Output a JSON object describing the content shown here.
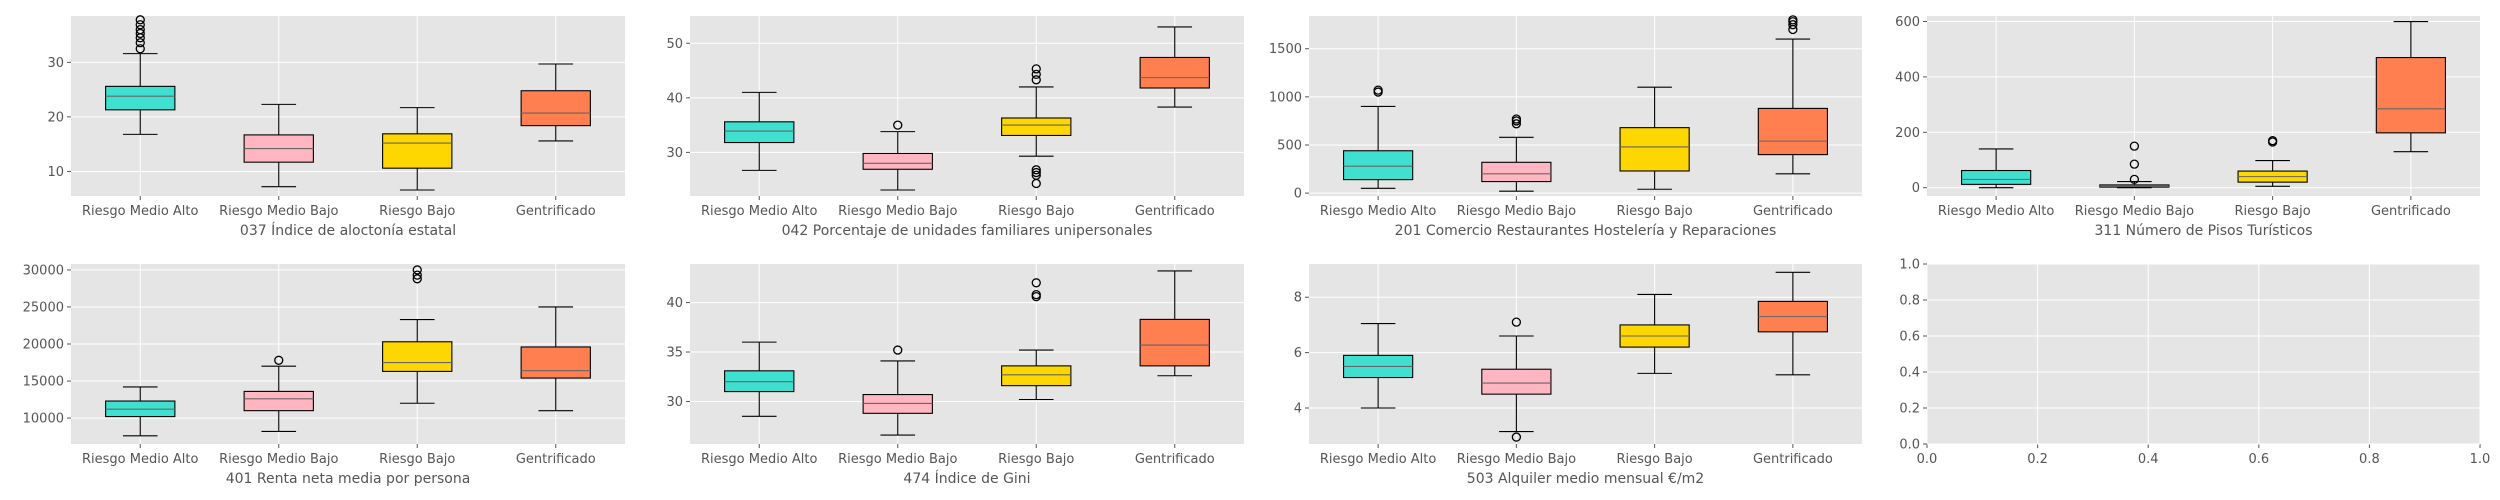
{
  "colors": {
    "background": "#e5e5e5",
    "grid": "#ffffff",
    "Riesgo Medio Alto": "#40e0d0",
    "Riesgo Medio Bajo": "#ffb6c1",
    "Riesgo Bajo": "#ffd700",
    "Gentrificado": "#ff7f50",
    "median": "#666666"
  },
  "chart_data": [
    {
      "type": "box",
      "xlabel": "037 Índice de aloctonía estatal",
      "categories": [
        "Riesgo Medio Alto",
        "Riesgo Medio Bajo",
        "Riesgo Bajo",
        "Gentrificado"
      ],
      "ylim": [
        5.5,
        38.5
      ],
      "yticks": [
        10,
        20,
        30
      ],
      "boxes": [
        {
          "whislo": 16.8,
          "q1": 21.3,
          "med": 23.8,
          "q3": 25.6,
          "whishi": 31.6,
          "fliers": [
            32.5,
            33.6,
            34.5,
            35.3,
            36.0,
            36.9,
            37.8
          ]
        },
        {
          "whislo": 7.2,
          "q1": 11.7,
          "med": 14.2,
          "q3": 16.7,
          "whishi": 22.3,
          "fliers": []
        },
        {
          "whislo": 6.6,
          "q1": 10.6,
          "med": 15.2,
          "q3": 16.9,
          "whishi": 21.7,
          "fliers": []
        },
        {
          "whislo": 15.6,
          "q1": 18.4,
          "med": 20.7,
          "q3": 24.8,
          "whishi": 29.7,
          "fliers": []
        }
      ]
    },
    {
      "type": "box",
      "xlabel": "042 Porcentaje de unidades familiares unipersonales",
      "categories": [
        "Riesgo Medio Alto",
        "Riesgo Medio Bajo",
        "Riesgo Bajo",
        "Gentrificado"
      ],
      "ylim": [
        22.0,
        55.0
      ],
      "yticks": [
        30,
        40,
        50
      ],
      "boxes": [
        {
          "whislo": 26.7,
          "q1": 31.8,
          "med": 33.9,
          "q3": 35.6,
          "whishi": 41.0,
          "fliers": []
        },
        {
          "whislo": 23.1,
          "q1": 26.9,
          "med": 28.0,
          "q3": 29.8,
          "whishi": 33.8,
          "fliers": [
            35.0
          ]
        },
        {
          "whislo": 29.3,
          "q1": 33.1,
          "med": 35.0,
          "q3": 36.3,
          "whishi": 42.0,
          "fliers": [
            43.3,
            44.3,
            45.3,
            24.3,
            25.8,
            26.3,
            26.8
          ]
        },
        {
          "whislo": 38.3,
          "q1": 41.8,
          "med": 43.7,
          "q3": 47.4,
          "whishi": 53.0,
          "fliers": []
        }
      ]
    },
    {
      "type": "box",
      "xlabel": "201 Comercio Restaurantes Hostelería y Reparaciones",
      "categories": [
        "Riesgo Medio Alto",
        "Riesgo Medio Bajo",
        "Riesgo Bajo",
        "Gentrificado"
      ],
      "ylim": [
        -30,
        1840
      ],
      "yticks": [
        0,
        500,
        1000,
        1500
      ],
      "boxes": [
        {
          "whislo": 50,
          "q1": 140,
          "med": 280,
          "q3": 440,
          "whishi": 900,
          "fliers": [
            1050,
            1070
          ]
        },
        {
          "whislo": 20,
          "q1": 120,
          "med": 200,
          "q3": 320,
          "whishi": 580,
          "fliers": [
            720,
            750,
            770
          ]
        },
        {
          "whislo": 40,
          "q1": 230,
          "med": 480,
          "q3": 680,
          "whishi": 1100,
          "fliers": []
        },
        {
          "whislo": 200,
          "q1": 400,
          "med": 540,
          "q3": 880,
          "whishi": 1600,
          "fliers": [
            1700,
            1750,
            1780,
            1800
          ]
        }
      ]
    },
    {
      "type": "box",
      "xlabel": "311 Número de Pisos Turísticos",
      "categories": [
        "Riesgo Medio Alto",
        "Riesgo Medio Bajo",
        "Riesgo Bajo",
        "Gentrificado"
      ],
      "ylim": [
        -30,
        620
      ],
      "yticks": [
        0,
        200,
        400,
        600
      ],
      "boxes": [
        {
          "whislo": 0,
          "q1": 12,
          "med": 30,
          "q3": 62,
          "whishi": 140,
          "fliers": []
        },
        {
          "whislo": 0,
          "q1": 2,
          "med": 5,
          "q3": 10,
          "whishi": 22,
          "fliers": [
            30,
            85,
            150
          ]
        },
        {
          "whislo": 5,
          "q1": 20,
          "med": 40,
          "q3": 60,
          "whishi": 98,
          "fliers": [
            165,
            170
          ]
        },
        {
          "whislo": 130,
          "q1": 198,
          "med": 285,
          "q3": 470,
          "whishi": 600,
          "fliers": []
        }
      ]
    },
    {
      "type": "box",
      "xlabel": "401 Renta neta media por persona",
      "categories": [
        "Riesgo Medio Alto",
        "Riesgo Medio Bajo",
        "Riesgo Bajo",
        "Gentrificado"
      ],
      "ylim": [
        6500,
        30800
      ],
      "yticks": [
        10000,
        15000,
        20000,
        25000,
        30000
      ],
      "boxes": [
        {
          "whislo": 7600,
          "q1": 10200,
          "med": 11200,
          "q3": 12300,
          "whishi": 14200,
          "fliers": []
        },
        {
          "whislo": 8200,
          "q1": 11000,
          "med": 12600,
          "q3": 13600,
          "whishi": 17000,
          "fliers": [
            17800
          ]
        },
        {
          "whislo": 12000,
          "q1": 16300,
          "med": 17500,
          "q3": 20300,
          "whishi": 23300,
          "fliers": [
            28800,
            29300,
            30000
          ]
        },
        {
          "whislo": 11000,
          "q1": 15400,
          "med": 16400,
          "q3": 19600,
          "whishi": 25000,
          "fliers": []
        }
      ]
    },
    {
      "type": "box",
      "xlabel": "474 Índice de Gini",
      "categories": [
        "Riesgo Medio Alto",
        "Riesgo Medio Bajo",
        "Riesgo Bajo",
        "Gentrificado"
      ],
      "ylim": [
        25.7,
        43.9
      ],
      "yticks": [
        30,
        35,
        40
      ],
      "boxes": [
        {
          "whislo": 28.5,
          "q1": 31.0,
          "med": 32.0,
          "q3": 33.1,
          "whishi": 36.0,
          "fliers": []
        },
        {
          "whislo": 26.6,
          "q1": 28.8,
          "med": 29.8,
          "q3": 30.7,
          "whishi": 34.1,
          "fliers": [
            35.2
          ]
        },
        {
          "whislo": 30.2,
          "q1": 31.6,
          "med": 32.7,
          "q3": 33.6,
          "whishi": 35.2,
          "fliers": [
            40.6,
            40.8,
            42.0
          ]
        },
        {
          "whislo": 32.6,
          "q1": 33.6,
          "med": 35.7,
          "q3": 38.3,
          "whishi": 43.2,
          "fliers": []
        }
      ]
    },
    {
      "type": "box",
      "xlabel": "503 Alquiler medio mensual €/m2",
      "categories": [
        "Riesgo Medio Alto",
        "Riesgo Medio Bajo",
        "Riesgo Bajo",
        "Gentrificado"
      ],
      "ylim": [
        2.7,
        9.2
      ],
      "yticks": [
        4,
        6,
        8
      ],
      "boxes": [
        {
          "whislo": 4.0,
          "q1": 5.1,
          "med": 5.5,
          "q3": 5.9,
          "whishi": 7.05,
          "fliers": []
        },
        {
          "whislo": 3.15,
          "q1": 4.5,
          "med": 4.9,
          "q3": 5.4,
          "whishi": 6.6,
          "fliers": [
            7.1,
            2.95
          ]
        },
        {
          "whislo": 5.25,
          "q1": 6.2,
          "med": 6.6,
          "q3": 7.0,
          "whishi": 8.1,
          "fliers": []
        },
        {
          "whislo": 5.2,
          "q1": 6.75,
          "med": 7.3,
          "q3": 7.85,
          "whishi": 8.9,
          "fliers": []
        }
      ]
    },
    {
      "type": "empty",
      "xlim": [
        0.0,
        1.0
      ],
      "ylim": [
        0.0,
        1.0
      ],
      "xtick_labels": [
        "0.0",
        "0.2",
        "0.4",
        "0.6",
        "0.8",
        "1.0"
      ],
      "ytick_labels": [
        "0.0",
        "0.2",
        "0.4",
        "0.6",
        "0.8",
        "1.0"
      ]
    }
  ]
}
